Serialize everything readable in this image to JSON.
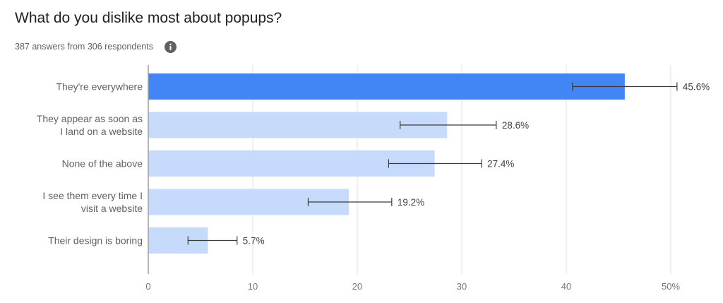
{
  "header": {
    "title": "What do you dislike most about popups?",
    "subtitle": "387 answers from 306 respondents",
    "info_icon": "info-icon"
  },
  "colors": {
    "highlight_bar": "#4285f4",
    "bar": "#c6dafc",
    "grid": "#e0e0e0",
    "axis": "#9e9e9e",
    "error_bar": "#3c3c3c"
  },
  "chart_data": {
    "type": "bar",
    "orientation": "horizontal",
    "title": "What do you dislike most about popups?",
    "subtitle": "387 answers from 306 respondents",
    "categories": [
      [
        "They're everywhere"
      ],
      [
        "They appear as soon as",
        "I land on a website"
      ],
      [
        "None of the above"
      ],
      [
        "I see them every time I",
        "visit a website"
      ],
      [
        "Their design is boring"
      ]
    ],
    "values": [
      45.6,
      28.6,
      27.4,
      19.2,
      5.7
    ],
    "data_labels": [
      "45.6%",
      "28.6%",
      "27.4%",
      "19.2%",
      "5.7%"
    ],
    "error_bars": [
      [
        40.6,
        50.6
      ],
      [
        24.1,
        33.3
      ],
      [
        23.0,
        31.9
      ],
      [
        15.3,
        23.3
      ],
      [
        3.8,
        8.5
      ]
    ],
    "highlighted_index": 0,
    "xlim": [
      0,
      50
    ],
    "x_ticks": [
      0,
      10,
      20,
      30,
      40,
      50
    ],
    "x_tick_labels": [
      "0",
      "10",
      "20",
      "30",
      "40",
      "50%"
    ],
    "xlabel": "",
    "ylabel": "",
    "grid": true,
    "legend": "none"
  }
}
